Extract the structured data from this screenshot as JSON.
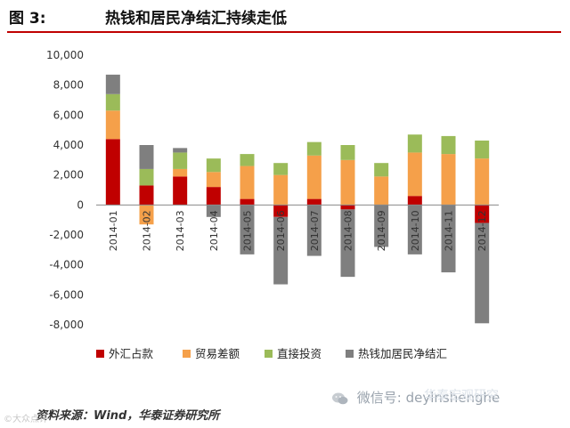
{
  "header": {
    "figure_label": "图 3:",
    "title": "热钱和居民净结汇持续走低"
  },
  "footer": {
    "source": "资料来源：Wind，华泰证券研究所"
  },
  "watermark": {
    "text": "微信号: deyinshenghe",
    "overlay_text": "华泰宏观研究"
  },
  "corner_mark": "©大众点评",
  "colors": {
    "accent_rule": "#c00000",
    "series": [
      "#c00000",
      "#f5a04a",
      "#9bbb59",
      "#7f7f7f"
    ]
  },
  "chart_data": {
    "type": "bar",
    "subtype": "stacked",
    "title": "热钱和居民净结汇持续走低",
    "xlabel": "",
    "ylabel": "",
    "ylim": [
      -8000,
      10000
    ],
    "yticks": [
      -8000,
      -6000,
      -4000,
      -2000,
      0,
      2000,
      4000,
      6000,
      8000,
      10000
    ],
    "ytick_labels": [
      "-8,000",
      "-6,000",
      "-4,000",
      "-2,000",
      "0",
      "2,000",
      "4,000",
      "6,000",
      "8,000",
      "10,000"
    ],
    "categories": [
      "2014-01",
      "2014-02",
      "2014-03",
      "2014-04",
      "2014-05",
      "2014-06",
      "2014-07",
      "2014-08",
      "2014-09",
      "2014-10",
      "2014-11",
      "2014-12"
    ],
    "series": [
      {
        "name": "外汇占款",
        "color": "#c00000",
        "values": [
          4400,
          1300,
          1900,
          1200,
          400,
          -800,
          400,
          -300,
          0,
          600,
          0,
          -1200
        ]
      },
      {
        "name": "贸易差额",
        "color": "#f5a04a",
        "values": [
          1900,
          -1300,
          500,
          1000,
          2200,
          2000,
          2900,
          3000,
          1900,
          2900,
          3400,
          3100
        ]
      },
      {
        "name": "直接投资",
        "color": "#9bbb59",
        "values": [
          1100,
          1100,
          1100,
          900,
          800,
          800,
          900,
          1000,
          900,
          1200,
          1200,
          1200
        ]
      },
      {
        "name": "热钱加居民净结汇",
        "color": "#7f7f7f",
        "values": [
          1300,
          1600,
          300,
          -800,
          -3300,
          -4500,
          -3400,
          -4500,
          -2800,
          -3300,
          -4500,
          -6700
        ]
      }
    ],
    "legend_position": "bottom",
    "grid": false
  }
}
